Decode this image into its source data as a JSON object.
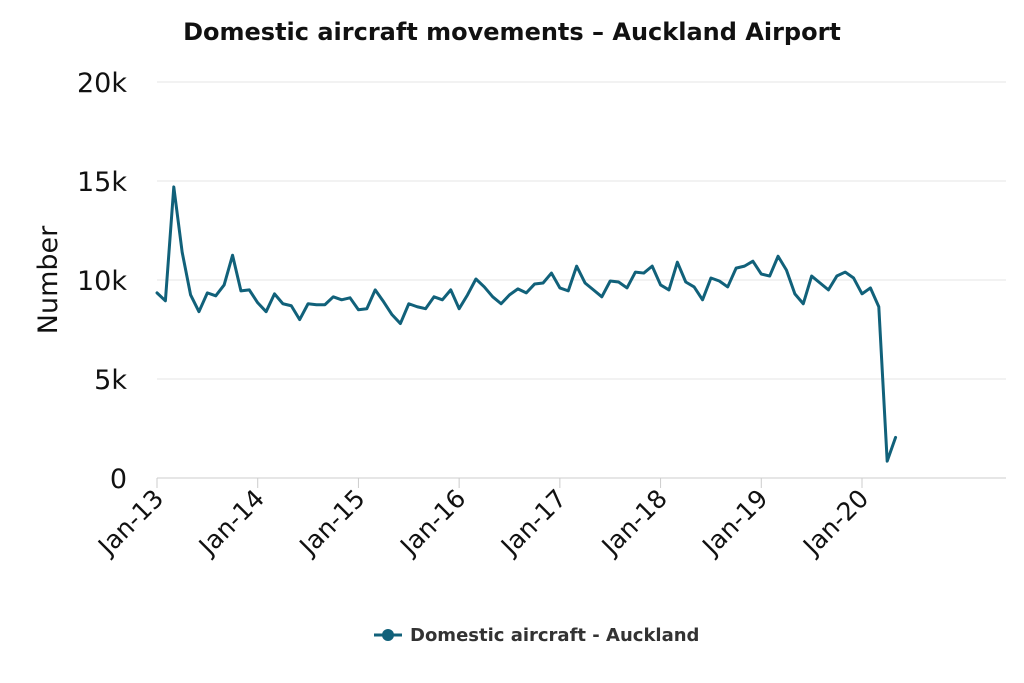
{
  "chart_data": {
    "type": "line",
    "title": "Domestic aircraft movements – Auckland Airport",
    "ylabel": "Number",
    "xlabel": "",
    "ylim": [
      0,
      20000
    ],
    "yticks": [
      0,
      5000,
      10000,
      15000,
      20000
    ],
    "ytick_labels": [
      "0",
      "5k",
      "10k",
      "15k",
      "20k"
    ],
    "xticks": [
      "2013-01",
      "2014-01",
      "2015-01",
      "2016-01",
      "2017-01",
      "2018-01",
      "2019-01",
      "2020-01"
    ],
    "xtick_labels": [
      "Jan-13",
      "Jan-14",
      "Jan-15",
      "Jan-16",
      "Jan-17",
      "Jan-18",
      "Jan-19",
      "Jan-20"
    ],
    "grid": true,
    "legend_position": "bottom-center",
    "color": "#11617a",
    "series": [
      {
        "name": "Domestic aircraft - Auckland",
        "start": "2013-01",
        "frequency": "monthly",
        "values": [
          9350,
          8950,
          14700,
          11400,
          9250,
          8400,
          9350,
          9200,
          9750,
          11250,
          9450,
          9500,
          8850,
          8400,
          9300,
          8800,
          8700,
          8000,
          8800,
          8750,
          8750,
          9150,
          9000,
          9100,
          8500,
          8550,
          9500,
          8900,
          8250,
          7800,
          8800,
          8650,
          8550,
          9150,
          9000,
          9500,
          8550,
          9250,
          10050,
          9650,
          9150,
          8800,
          9250,
          9550,
          9350,
          9800,
          9850,
          10350,
          9600,
          9450,
          10700,
          9850,
          9500,
          9150,
          9950,
          9900,
          9600,
          10400,
          10350,
          10700,
          9750,
          9500,
          10900,
          9900,
          9650,
          9000,
          10100,
          9950,
          9650,
          10600,
          10700,
          10950,
          10300,
          10200,
          11200,
          10500,
          9300,
          8800,
          10200,
          9850,
          9500,
          10200,
          10400,
          10100,
          9300,
          9600,
          8650,
          850,
          2050
        ]
      }
    ]
  }
}
